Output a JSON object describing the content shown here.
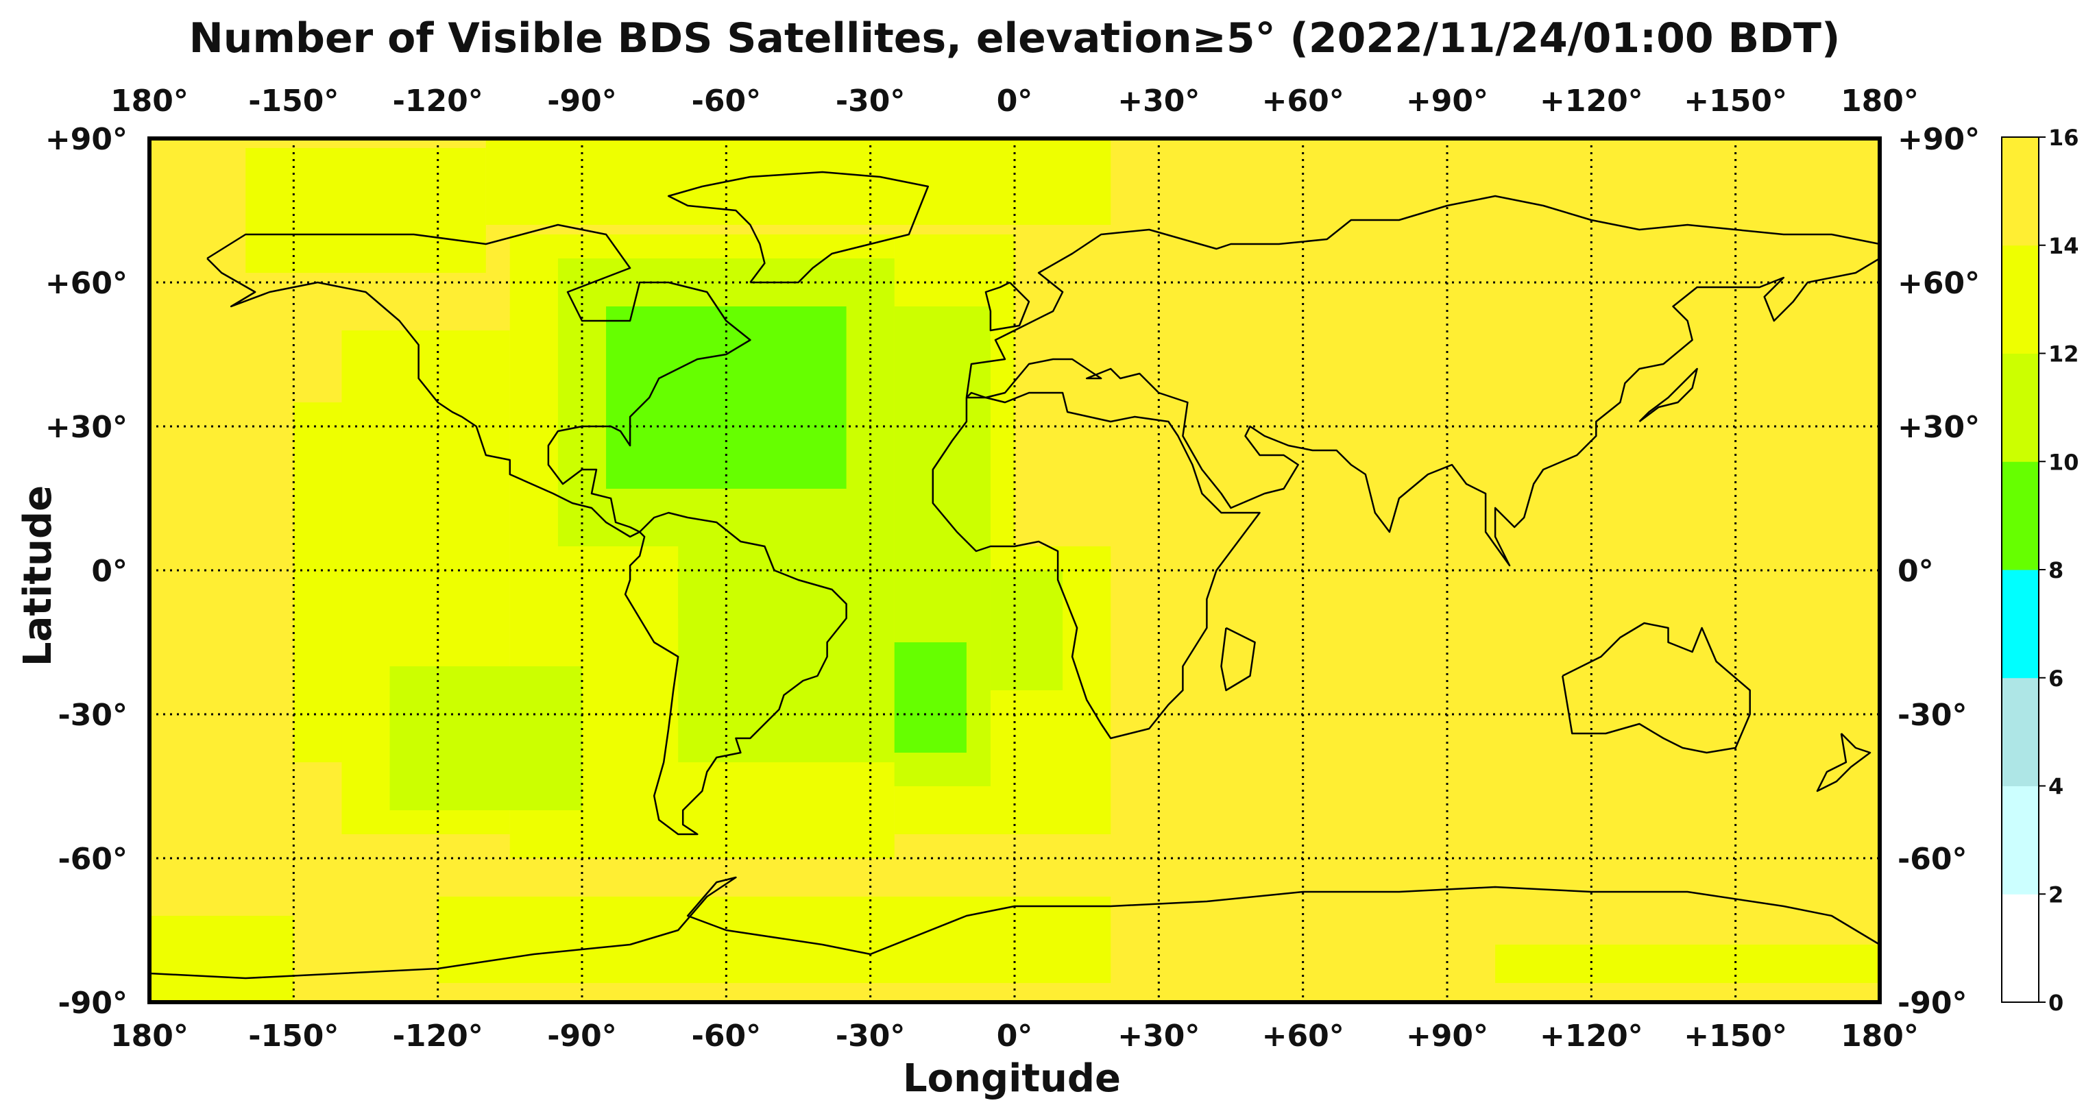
{
  "chart_data": {
    "type": "heatmap",
    "title": "Number of Visible BDS Satellites, elevation≥5° (2022/11/24/01:00 BDT)",
    "xlabel": "Longitude",
    "ylabel": "Latitude",
    "xlim": [
      -180,
      180
    ],
    "ylim": [
      -90,
      90
    ],
    "grid": true,
    "x_ticks": [
      -180,
      -150,
      -120,
      -90,
      -60,
      -30,
      0,
      30,
      60,
      90,
      120,
      150,
      180
    ],
    "x_tick_labels": [
      "180°",
      "-150°",
      "-120°",
      "-90°",
      "-60°",
      "-30°",
      "0°",
      "+30°",
      "+60°",
      "+90°",
      "+120°",
      "+150°",
      "180°"
    ],
    "y_ticks": [
      90,
      60,
      30,
      0,
      -30,
      -60,
      -90
    ],
    "y_tick_labels": [
      "+90°",
      "+60°",
      "+30°",
      "0°",
      "-30°",
      "-60°",
      "-90°"
    ],
    "colorbar": {
      "min": 0,
      "max": 16,
      "ticks": [
        0,
        2,
        4,
        6,
        8,
        10,
        12,
        14,
        16
      ],
      "tick_labels": [
        "0",
        "2",
        "4",
        "6",
        "8",
        "10",
        "12",
        "14",
        "16"
      ],
      "colors": [
        "#ffffff",
        "#ccffff",
        "#aee6e6",
        "#00ffff",
        "#66ff00",
        "#ccff00",
        "#eeff00",
        "#ffee33"
      ]
    },
    "regions": [
      {
        "name": "background",
        "level": 14,
        "lon": [
          -180,
          180
        ],
        "lat": [
          -90,
          90
        ]
      },
      {
        "level": 12,
        "lon": [
          -105,
          -25
        ],
        "lat": [
          -60,
          70
        ]
      },
      {
        "level": 12,
        "lon": [
          -140,
          -105
        ],
        "lat": [
          -55,
          50
        ]
      },
      {
        "level": 12,
        "lon": [
          -150,
          -140
        ],
        "lat": [
          -40,
          35
        ]
      },
      {
        "level": 12,
        "lon": [
          -25,
          0
        ],
        "lat": [
          -55,
          70
        ]
      },
      {
        "level": 12,
        "lon": [
          0,
          20
        ],
        "lat": [
          -55,
          5
        ]
      },
      {
        "level": 12,
        "lon": [
          -160,
          -110
        ],
        "lat": [
          62,
          88
        ]
      },
      {
        "level": 12,
        "lon": [
          -110,
          20
        ],
        "lat": [
          72,
          90
        ]
      },
      {
        "level": 12,
        "lon": [
          -180,
          -150
        ],
        "lat": [
          -90,
          -72
        ]
      },
      {
        "level": 12,
        "lon": [
          -120,
          20
        ],
        "lat": [
          -86,
          -68
        ]
      },
      {
        "level": 12,
        "lon": [
          100,
          180
        ],
        "lat": [
          -86,
          -78
        ]
      },
      {
        "level": 10,
        "lon": [
          -95,
          -25
        ],
        "lat": [
          5,
          65
        ]
      },
      {
        "level": 10,
        "lon": [
          -70,
          -25
        ],
        "lat": [
          -40,
          5
        ]
      },
      {
        "level": 10,
        "lon": [
          -25,
          -5
        ],
        "lat": [
          -45,
          55
        ]
      },
      {
        "level": 10,
        "lon": [
          -5,
          10
        ],
        "lat": [
          -25,
          0
        ]
      },
      {
        "level": 10,
        "lon": [
          -130,
          -90
        ],
        "lat": [
          -50,
          -20
        ]
      },
      {
        "level": 10,
        "lon": [
          -70,
          -55
        ],
        "lat": [
          -10,
          0
        ]
      },
      {
        "level": 8,
        "lon": [
          -85,
          -35
        ],
        "lat": [
          17,
          55
        ]
      },
      {
        "level": 8,
        "lon": [
          -25,
          -10
        ],
        "lat": [
          -38,
          -15
        ]
      }
    ]
  }
}
